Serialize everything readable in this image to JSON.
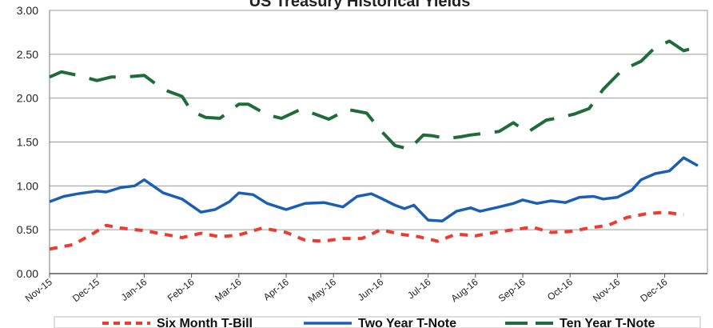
{
  "chart_data": {
    "type": "line",
    "title": "US Treasury Historical Yields",
    "xlabel": "",
    "ylabel": "",
    "ylim": [
      0,
      3
    ],
    "y_ticks": [
      "0.00",
      "0.50",
      "1.00",
      "1.50",
      "2.00",
      "2.50",
      "3.00"
    ],
    "categories": [
      "Nov-15",
      "Dec-15",
      "Jan-16",
      "Feb-16",
      "Mar-16",
      "Apr-16",
      "May-16",
      "Jun-16",
      "Jul-16",
      "Aug-16",
      "Sep-16",
      "Oct-16",
      "Nov-16",
      "Dec-16"
    ],
    "grid": "horizontal",
    "legend_position": "bottom",
    "series": [
      {
        "name": "Six Month T-Bill",
        "color": "#ee3b2f",
        "style": "dashed",
        "x": [
          0,
          0.5,
          0.9,
          1.2,
          1.5,
          2.0,
          2.4,
          2.8,
          3.2,
          3.6,
          4.0,
          4.5,
          5.0,
          5.4,
          5.8,
          6.2,
          6.6,
          7.0,
          7.4,
          7.8,
          8.2,
          8.6,
          9.0,
          9.4,
          9.8,
          10.2,
          10.6,
          11.0,
          11.4,
          11.8,
          12.2,
          12.6,
          13.0,
          13.4
        ],
        "y": [
          0.28,
          0.33,
          0.45,
          0.55,
          0.52,
          0.49,
          0.45,
          0.41,
          0.46,
          0.42,
          0.44,
          0.52,
          0.47,
          0.38,
          0.37,
          0.4,
          0.4,
          0.5,
          0.45,
          0.42,
          0.37,
          0.45,
          0.43,
          0.47,
          0.5,
          0.53,
          0.47,
          0.48,
          0.52,
          0.55,
          0.64,
          0.68,
          0.7,
          0.67
        ]
      },
      {
        "name": "Two Year T-Note",
        "color": "#1a5fb4",
        "style": "solid",
        "x": [
          0,
          0.3,
          0.6,
          1.0,
          1.2,
          1.5,
          1.8,
          2.0,
          2.4,
          2.8,
          3.2,
          3.5,
          3.8,
          4.0,
          4.3,
          4.6,
          5.0,
          5.4,
          5.8,
          6.2,
          6.5,
          6.8,
          7.0,
          7.3,
          7.5,
          7.7,
          8.0,
          8.3,
          8.6,
          8.9,
          9.1,
          9.5,
          9.8,
          10.0,
          10.3,
          10.6,
          10.9,
          11.2,
          11.5,
          11.7,
          12.0,
          12.3,
          12.5,
          12.8,
          13.1,
          13.4,
          13.7
        ],
        "y": [
          0.82,
          0.88,
          0.91,
          0.94,
          0.93,
          0.98,
          1.0,
          1.07,
          0.92,
          0.85,
          0.7,
          0.73,
          0.82,
          0.92,
          0.9,
          0.8,
          0.73,
          0.8,
          0.81,
          0.76,
          0.88,
          0.91,
          0.86,
          0.78,
          0.74,
          0.78,
          0.61,
          0.6,
          0.71,
          0.75,
          0.71,
          0.76,
          0.8,
          0.84,
          0.8,
          0.83,
          0.81,
          0.87,
          0.88,
          0.85,
          0.87,
          0.95,
          1.07,
          1.14,
          1.17,
          1.32,
          1.23
        ]
      },
      {
        "name": "Ten Year T-Note",
        "color": "#1f6b3a",
        "style": "dashed",
        "x": [
          0,
          0.25,
          0.6,
          1.0,
          1.3,
          1.6,
          2.0,
          2.4,
          2.8,
          3.0,
          3.3,
          3.6,
          4.0,
          4.2,
          4.6,
          4.9,
          5.3,
          5.6,
          5.9,
          6.3,
          6.7,
          7.0,
          7.3,
          7.6,
          7.9,
          8.1,
          8.4,
          8.7,
          8.9,
          9.2,
          9.5,
          9.8,
          10.1,
          10.5,
          10.8,
          11.1,
          11.4,
          11.7,
          12.1,
          12.5,
          12.8,
          13.1,
          13.4,
          13.6,
          13.8
        ],
        "y": [
          2.24,
          2.3,
          2.26,
          2.2,
          2.24,
          2.24,
          2.26,
          2.1,
          2.02,
          1.85,
          1.78,
          1.77,
          1.93,
          1.93,
          1.81,
          1.77,
          1.87,
          1.82,
          1.76,
          1.87,
          1.83,
          1.63,
          1.46,
          1.42,
          1.58,
          1.57,
          1.54,
          1.56,
          1.58,
          1.6,
          1.62,
          1.72,
          1.61,
          1.75,
          1.78,
          1.82,
          1.88,
          2.1,
          2.32,
          2.42,
          2.58,
          2.65,
          2.54,
          2.57,
          2.61
        ]
      }
    ]
  }
}
